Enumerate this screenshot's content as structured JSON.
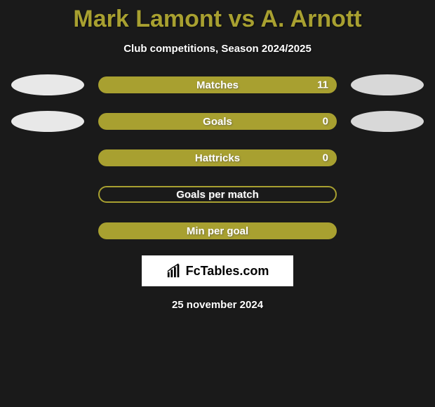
{
  "title": "Mark Lamont vs A. Arnott",
  "subtitle": "Club competitions, Season 2024/2025",
  "date": "25 november 2024",
  "logo_text": "FcTables.com",
  "colors": {
    "background": "#1a1a1a",
    "accent": "#a8a030",
    "ellipse_left": "#e8e8e8",
    "ellipse_right": "#d8d8d8",
    "text": "#ffffff",
    "title": "#a8a030"
  },
  "rows": [
    {
      "label": "Matches",
      "value": "11",
      "fill_pct": 100,
      "fill_color": "#a8a030",
      "has_value": true,
      "show_left_ellipse": true,
      "show_right_ellipse": true,
      "outline_only": false
    },
    {
      "label": "Goals",
      "value": "0",
      "fill_pct": 100,
      "fill_color": "#a8a030",
      "has_value": true,
      "show_left_ellipse": true,
      "show_right_ellipse": true,
      "outline_only": false
    },
    {
      "label": "Hattricks",
      "value": "0",
      "fill_pct": 100,
      "fill_color": "#a8a030",
      "has_value": true,
      "show_left_ellipse": false,
      "show_right_ellipse": false,
      "outline_only": false
    },
    {
      "label": "Goals per match",
      "value": "",
      "fill_pct": 0,
      "fill_color": "#a8a030",
      "has_value": false,
      "show_left_ellipse": false,
      "show_right_ellipse": false,
      "outline_only": true
    },
    {
      "label": "Min per goal",
      "value": "",
      "fill_pct": 100,
      "fill_color": "#a8a030",
      "has_value": false,
      "show_left_ellipse": false,
      "show_right_ellipse": false,
      "outline_only": false
    }
  ]
}
